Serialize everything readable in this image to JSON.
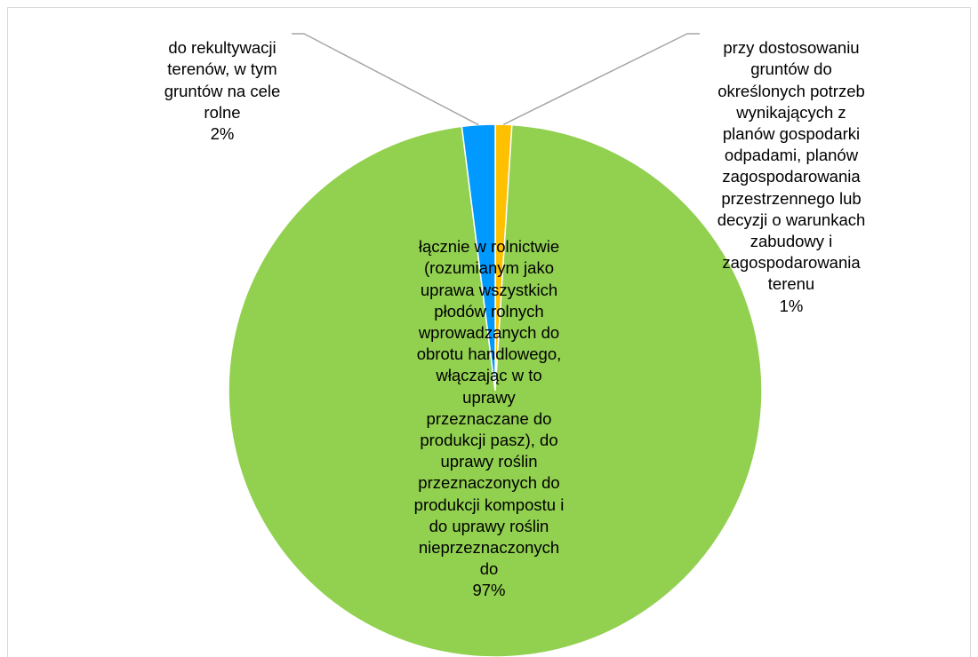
{
  "chart_data": {
    "type": "pie",
    "slices": [
      {
        "label": "łącznie w rolnictwie\n(rozumianym jako\nuprawa wszystkich\npłodów rolnych\nwprowadzanych do\nobrotu handlowego,\nwłączając w to\nuprawy\nprzeznaczane do\nprodukcji pasz), do\nuprawy roślin\nprzeznaczonych do\nprodukcji kompostu i\ndo uprawy roślin\nnieprzeznaczonych\ndo",
        "value": 97,
        "value_label": "97%",
        "color": "#92d050"
      },
      {
        "label": "do rekultywacji\nterenów, w tym\ngruntów na cele\nrolne",
        "value": 2,
        "value_label": "2%",
        "color": "#0099ff"
      },
      {
        "label": "przy dostosowaniu\ngruntów do\nokreślonych potrzeb\nwynikających z\nplanów gospodarki\nodpadami, planów\nzagospodarowania\nprzestrzennego lub\ndecyzji o warunkach\nzabudowy i\nzagospodarowania\nterenu",
        "value": 1,
        "value_label": "1%",
        "color": "#ffc000"
      }
    ],
    "start_angle_deg": 0,
    "direction": "clockwise",
    "title": "",
    "legend": "none"
  }
}
